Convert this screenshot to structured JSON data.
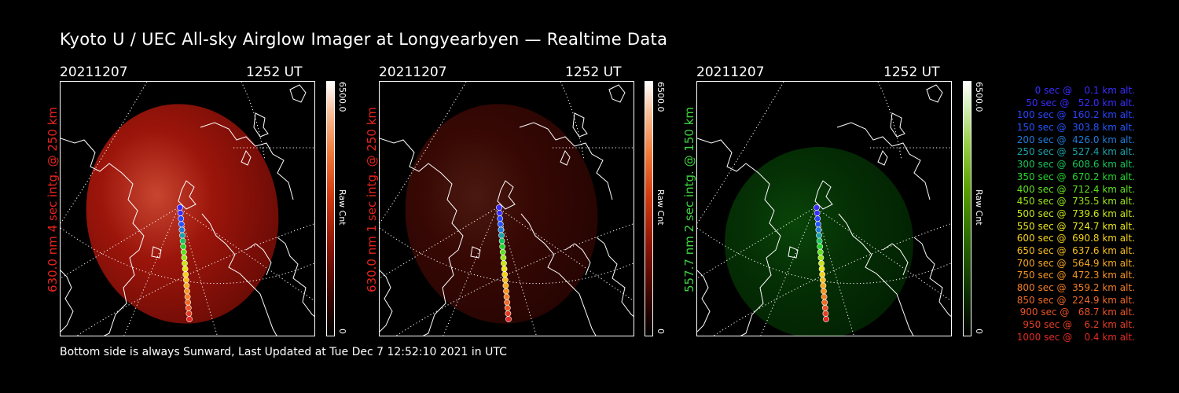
{
  "title": "Kyoto U / UEC All-sky Airglow Imager at Longyearbyen — Realtime Data",
  "footer": "Bottom side is always Sunward, Last Updated at Tue Dec  7 12:52:10 2021 in UTC",
  "panels": [
    {
      "date": "20211207",
      "time": "1252 UT",
      "ylabel": "630.0 nm 4 sec intg. @ 250 km",
      "label_color": "#e8231c",
      "cb_max": "6500.0",
      "cb_min": "0",
      "cb_label": "Raw Cnt",
      "glow": "red",
      "brightness": 0.85
    },
    {
      "date": "20211207",
      "time": "1252 UT",
      "ylabel": "630.0 nm 1 sec intg. @ 250 km",
      "label_color": "#e8231c",
      "cb_max": "6500.0",
      "cb_min": "0",
      "cb_label": "Raw Cnt",
      "glow": "red",
      "brightness": 0.22
    },
    {
      "date": "20211207",
      "time": "1252 UT",
      "ylabel": "557.7 nm 2 sec intg. @ 150 km",
      "label_color": "#3fd63f",
      "cb_max": "6500.0",
      "cb_min": "0",
      "cb_label": "Raw Cnt",
      "glow": "green",
      "brightness": 0.3
    }
  ],
  "legend": [
    {
      "text": "   0 sec @    0.1 km alt.",
      "color": "#3a2cff"
    },
    {
      "text": "  50 sec @   52.0 km alt.",
      "color": "#3a2cff"
    },
    {
      "text": " 100 sec @  160.2 km alt.",
      "color": "#2a44ff"
    },
    {
      "text": " 150 sec @  303.8 km alt.",
      "color": "#2255ff"
    },
    {
      "text": " 200 sec @  426.0 km alt.",
      "color": "#1f7bd8"
    },
    {
      "text": " 250 sec @  527.4 km alt.",
      "color": "#1aa0a8"
    },
    {
      "text": " 300 sec @  608.6 km alt.",
      "color": "#17c35a"
    },
    {
      "text": " 350 sec @  670.2 km alt.",
      "color": "#22d62a"
    },
    {
      "text": " 400 sec @  712.4 km alt.",
      "color": "#5fe01e"
    },
    {
      "text": " 450 sec @  735.5 km alt.",
      "color": "#9ae41c"
    },
    {
      "text": " 500 sec @  739.6 km alt.",
      "color": "#c8e61a"
    },
    {
      "text": " 550 sec @  724.7 km alt.",
      "color": "#e8e61a"
    },
    {
      "text": " 600 sec @  690.8 km alt.",
      "color": "#f2d21a"
    },
    {
      "text": " 650 sec @  637.6 km alt.",
      "color": "#f5bd1c"
    },
    {
      "text": " 700 sec @  564.9 km alt.",
      "color": "#f5a81e"
    },
    {
      "text": " 750 sec @  472.3 km alt.",
      "color": "#f59420"
    },
    {
      "text": " 800 sec @  359.2 km alt.",
      "color": "#f27e22"
    },
    {
      "text": " 850 sec @  224.9 km alt.",
      "color": "#ee6a24"
    },
    {
      "text": " 900 sec @   68.7 km alt.",
      "color": "#ea5224"
    },
    {
      "text": " 950 sec @    6.2 km alt.",
      "color": "#e53d24"
    },
    {
      "text": "1000 sec @    0.4 km alt.",
      "color": "#e02a24"
    }
  ]
}
